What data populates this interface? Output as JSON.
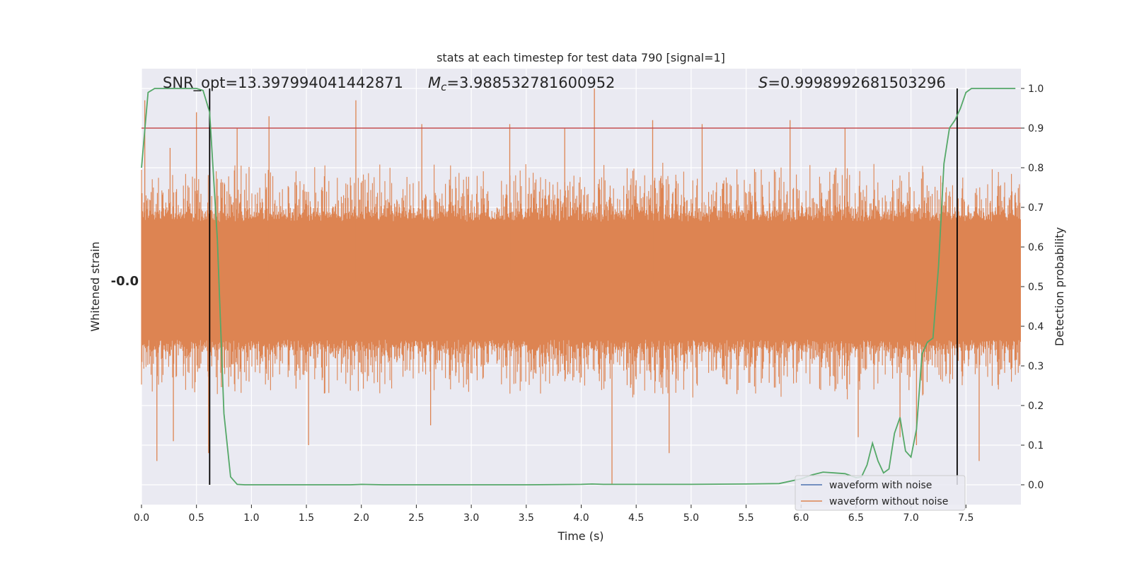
{
  "chart_data": {
    "type": "line",
    "title": "stats at each timestep for test data 790 [signal=1]",
    "xlabel": "Time (s)",
    "ylabel_left": "Whitened strain",
    "ylabel_right": "Detection probability",
    "xlim": [
      0.0,
      8.0
    ],
    "ylim_right": [
      -0.05,
      1.05
    ],
    "x_ticks": [
      0.0,
      0.5,
      1.0,
      1.5,
      2.0,
      2.5,
      3.0,
      3.5,
      4.0,
      4.5,
      5.0,
      5.5,
      6.0,
      6.5,
      7.0,
      7.5
    ],
    "x_tick_labels": [
      "0.0",
      "0.5",
      "1.0",
      "1.5",
      "2.0",
      "2.5",
      "3.0",
      "3.5",
      "4.0",
      "4.5",
      "5.0",
      "5.5",
      "6.0",
      "6.5",
      "7.0",
      "7.5"
    ],
    "y_right_ticks": [
      0.0,
      0.1,
      0.2,
      0.3,
      0.4,
      0.5,
      0.6,
      0.7,
      0.8,
      0.9,
      1.0
    ],
    "y_right_tick_labels": [
      "0.0",
      "0.1",
      "0.2",
      "0.3",
      "0.4",
      "0.5",
      "0.6",
      "0.7",
      "0.8",
      "0.9",
      "1.0"
    ],
    "grid": true,
    "legend": {
      "placement": "lower-right",
      "entries": [
        {
          "label": "waveform with noise",
          "color": "#4c72b0"
        },
        {
          "label": "waveform without noise",
          "color": "#dd8452"
        }
      ]
    },
    "annotations": {
      "snr_name": "SNR_opt",
      "snr_value": "=13.397994041442871",
      "mc_symbol": "M",
      "mc_sub": "c",
      "mc_value": "=3.988532781600952",
      "s_symbol": "S",
      "s_value": "=0.9998992681503296"
    },
    "threshold": {
      "y": 0.9,
      "color": "#c44e52"
    },
    "vertical_markers": [
      {
        "x": 0.62
      },
      {
        "x": 7.42
      }
    ],
    "detection_probability": {
      "name": "Detection probability",
      "color": "#55a868",
      "x": [
        0.0,
        0.06,
        0.12,
        0.19,
        0.25,
        0.31,
        0.38,
        0.44,
        0.5,
        0.56,
        0.62,
        0.69,
        0.75,
        0.81,
        0.87,
        0.94,
        1.0,
        1.5,
        1.9,
        2.0,
        2.2,
        2.5,
        3.0,
        3.5,
        4.0,
        4.1,
        4.2,
        4.5,
        5.0,
        5.5,
        5.8,
        6.0,
        6.1,
        6.2,
        6.3,
        6.4,
        6.5,
        6.55,
        6.6,
        6.65,
        6.7,
        6.75,
        6.8,
        6.85,
        6.9,
        6.95,
        7.0,
        7.05,
        7.1,
        7.15,
        7.2,
        7.25,
        7.3,
        7.35,
        7.4,
        7.45,
        7.5,
        7.55,
        7.6,
        7.7,
        7.8,
        7.95
      ],
      "y": [
        0.8,
        0.99,
        1.0,
        1.0,
        1.0,
        1.0,
        1.0,
        1.0,
        1.0,
        0.995,
        0.94,
        0.62,
        0.18,
        0.02,
        0.001,
        0.0,
        0.0,
        0.0,
        0.0,
        0.001,
        0.0,
        0.0,
        0.0,
        0.0,
        0.001,
        0.002,
        0.001,
        0.001,
        0.001,
        0.002,
        0.003,
        0.015,
        0.025,
        0.032,
        0.03,
        0.028,
        0.018,
        0.02,
        0.05,
        0.105,
        0.06,
        0.03,
        0.04,
        0.13,
        0.17,
        0.085,
        0.07,
        0.14,
        0.33,
        0.36,
        0.37,
        0.55,
        0.81,
        0.9,
        0.92,
        0.95,
        0.99,
        1.0,
        1.0,
        1.0,
        1.0,
        1.0
      ]
    },
    "waveform_without_noise": {
      "name": "waveform without noise",
      "color": "#dd8452",
      "band_core": [
        0.34,
        0.69
      ],
      "band_outer": [
        0.22,
        0.82
      ],
      "spikes": [
        {
          "x": 0.03,
          "y": 0.97
        },
        {
          "x": 0.14,
          "y": 0.06
        },
        {
          "x": 0.26,
          "y": 0.85
        },
        {
          "x": 0.29,
          "y": 0.11
        },
        {
          "x": 0.5,
          "y": 0.94
        },
        {
          "x": 0.61,
          "y": 0.08
        },
        {
          "x": 0.87,
          "y": 0.9
        },
        {
          "x": 1.16,
          "y": 0.93
        },
        {
          "x": 1.52,
          "y": 0.1
        },
        {
          "x": 1.95,
          "y": 0.97
        },
        {
          "x": 2.55,
          "y": 0.91
        },
        {
          "x": 2.63,
          "y": 0.15
        },
        {
          "x": 3.35,
          "y": 0.91
        },
        {
          "x": 3.85,
          "y": 0.9
        },
        {
          "x": 4.12,
          "y": 1.0
        },
        {
          "x": 4.28,
          "y": 0.0
        },
        {
          "x": 4.65,
          "y": 0.92
        },
        {
          "x": 4.8,
          "y": 0.08
        },
        {
          "x": 5.1,
          "y": 0.91
        },
        {
          "x": 5.9,
          "y": 0.92
        },
        {
          "x": 6.4,
          "y": 0.9
        },
        {
          "x": 6.52,
          "y": 0.12
        },
        {
          "x": 6.9,
          "y": 0.12
        },
        {
          "x": 7.05,
          "y": 0.1
        },
        {
          "x": 7.62,
          "y": 0.06
        }
      ]
    },
    "waveform_with_noise_left_marker": "-0.0"
  }
}
